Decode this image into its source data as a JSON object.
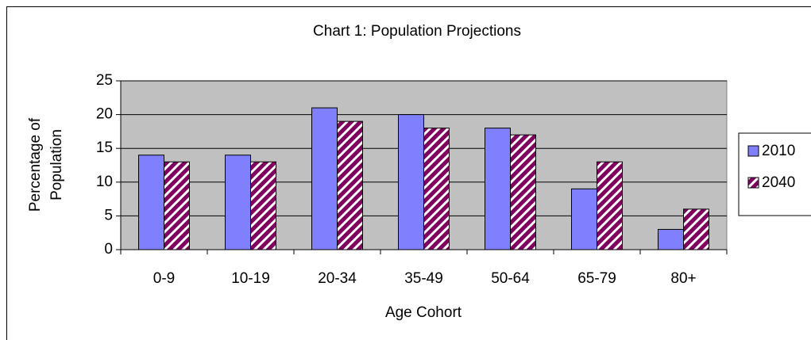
{
  "chart_data": {
    "type": "bar",
    "title": "Chart 1: Population Projections",
    "x_label": "Age Cohort",
    "y_label": [
      "Percentage of",
      "Population"
    ],
    "categories": [
      "0-9",
      "10-19",
      "20-34",
      "35-49",
      "50-64",
      "65-79",
      "80+"
    ],
    "series": [
      {
        "name": "2010",
        "color": "#8080ff",
        "pattern": "solid",
        "values": [
          14,
          14,
          21,
          20,
          18,
          9,
          3
        ]
      },
      {
        "name": "2040",
        "color": "#800060",
        "pattern": "hatch",
        "values": [
          13,
          13,
          19,
          18,
          17,
          13,
          6
        ]
      }
    ],
    "ylim": [
      0,
      25
    ],
    "yticks": [
      0,
      5,
      10,
      15,
      20,
      25
    ],
    "grid": true,
    "legend": "right"
  }
}
